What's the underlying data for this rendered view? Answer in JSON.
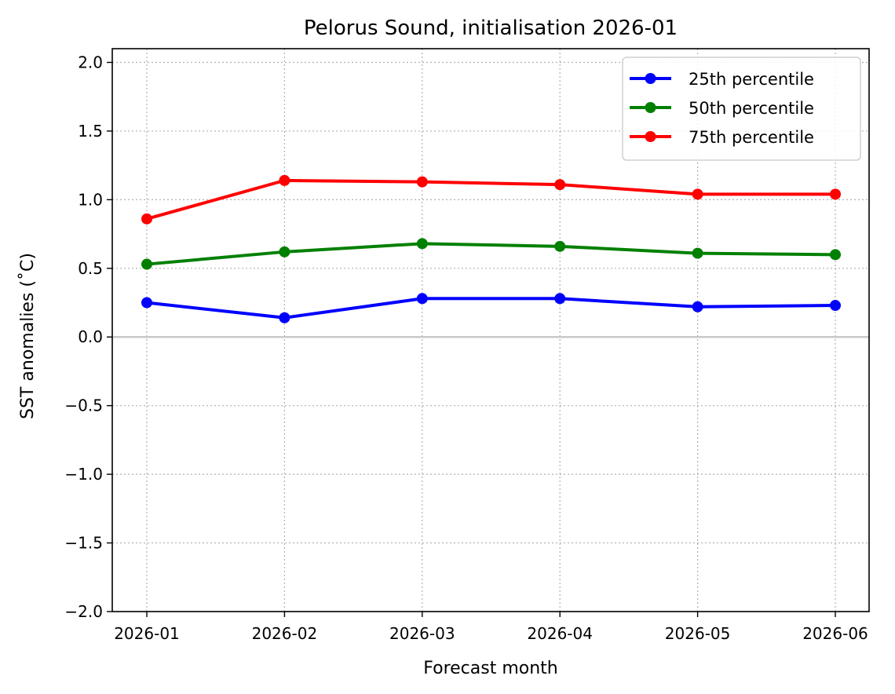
{
  "chart_data": {
    "type": "line",
    "title": "Pelorus Sound, initialisation 2026-01",
    "xlabel": "Forecast month",
    "ylabel": "SST anomalies (˚C)",
    "x": [
      "2026-01",
      "2026-02",
      "2026-03",
      "2026-04",
      "2026-05",
      "2026-06"
    ],
    "ylim": [
      -2.0,
      2.1
    ],
    "yticks": [
      "−2.0",
      "−1.5",
      "−1.0",
      "−0.5",
      "0.0",
      "0.5",
      "1.0",
      "1.5",
      "2.0"
    ],
    "ytick_values": [
      -2.0,
      -1.5,
      -1.0,
      -0.5,
      0.0,
      0.5,
      1.0,
      1.5,
      2.0
    ],
    "grid": true,
    "legend_position": "top-right",
    "series": [
      {
        "name": "25th percentile",
        "color": "#0000ff",
        "values": [
          0.25,
          0.14,
          0.28,
          0.28,
          0.22,
          0.23
        ]
      },
      {
        "name": "50th percentile",
        "color": "#008000",
        "values": [
          0.53,
          0.62,
          0.68,
          0.66,
          0.61,
          0.6
        ]
      },
      {
        "name": "75th percentile",
        "color": "#ff0000",
        "values": [
          0.86,
          1.14,
          1.13,
          1.11,
          1.04,
          1.04
        ]
      }
    ]
  }
}
